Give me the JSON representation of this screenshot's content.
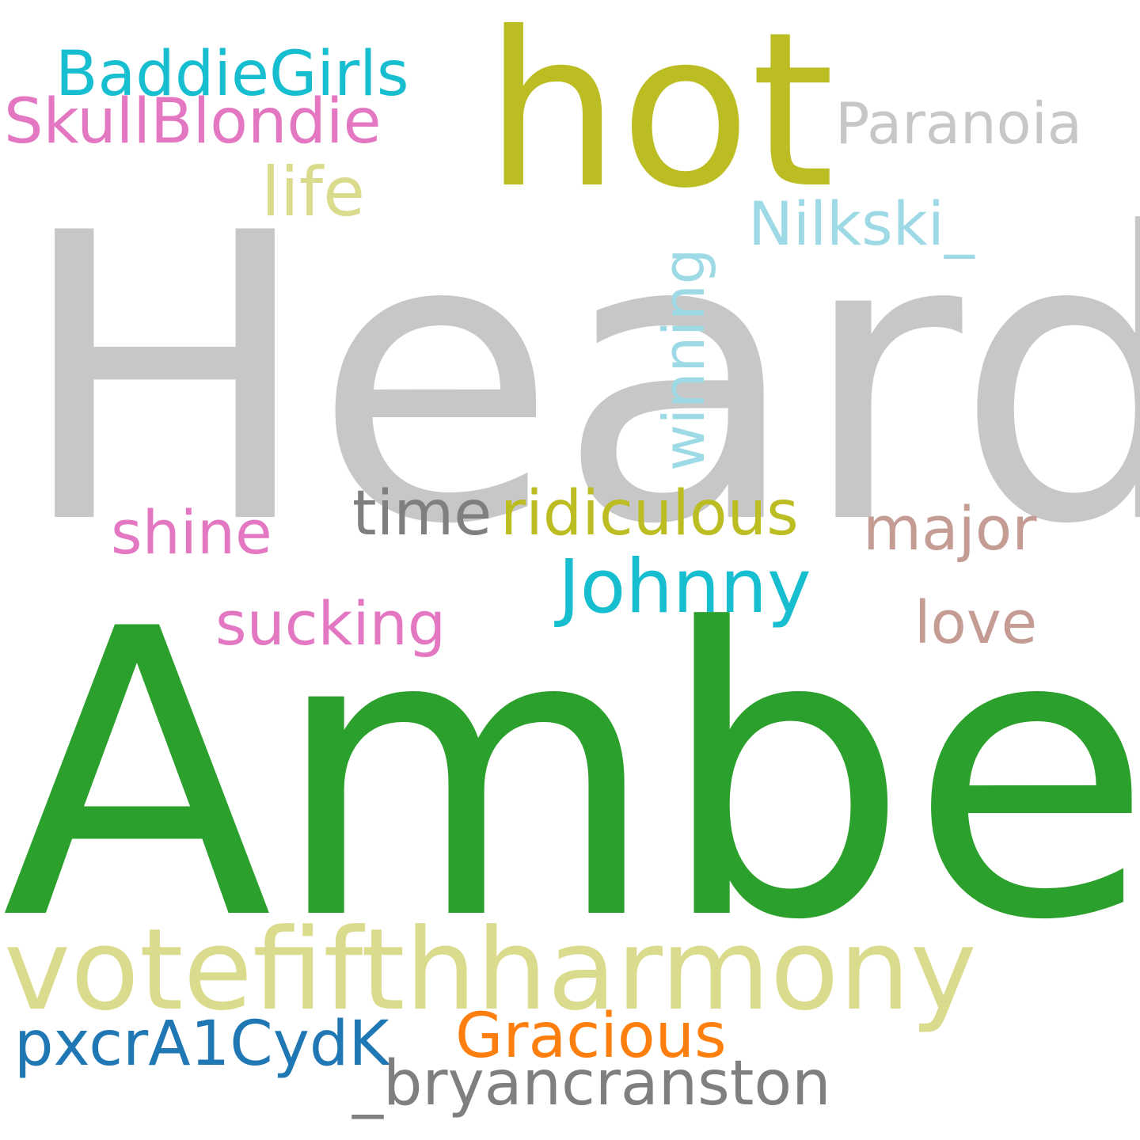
{
  "words": [
    {
      "text": "Heard",
      "color": "#c7c7c7"
    },
    {
      "text": "Amber",
      "color": "#2ca02c"
    },
    {
      "text": "hot",
      "color": "#bcbd22"
    },
    {
      "text": "votefifthharmony",
      "color": "#dbdb8d"
    },
    {
      "text": "BaddieGirls",
      "color": "#17becf"
    },
    {
      "text": "SkullBlondie",
      "color": "#e377c2"
    },
    {
      "text": "Paranoia",
      "color": "#c7c7c7"
    },
    {
      "text": "life",
      "color": "#dbdb8d"
    },
    {
      "text": "Nilkski_",
      "color": "#9edae5"
    },
    {
      "text": "winning",
      "color": "#9edae5"
    },
    {
      "text": "time",
      "color": "#7f7f7f"
    },
    {
      "text": "ridiculous",
      "color": "#bcbd22"
    },
    {
      "text": "shine",
      "color": "#e377c2"
    },
    {
      "text": "major",
      "color": "#c49c94"
    },
    {
      "text": "Johnny",
      "color": "#17becf"
    },
    {
      "text": "sucking",
      "color": "#e377c2"
    },
    {
      "text": "love",
      "color": "#c49c94"
    },
    {
      "text": "Gracious",
      "color": "#ff7f0e"
    },
    {
      "text": "pxcrA1CydK",
      "color": "#1f77b4"
    },
    {
      "text": "_bryancranston",
      "color": "#7f7f7f"
    }
  ]
}
